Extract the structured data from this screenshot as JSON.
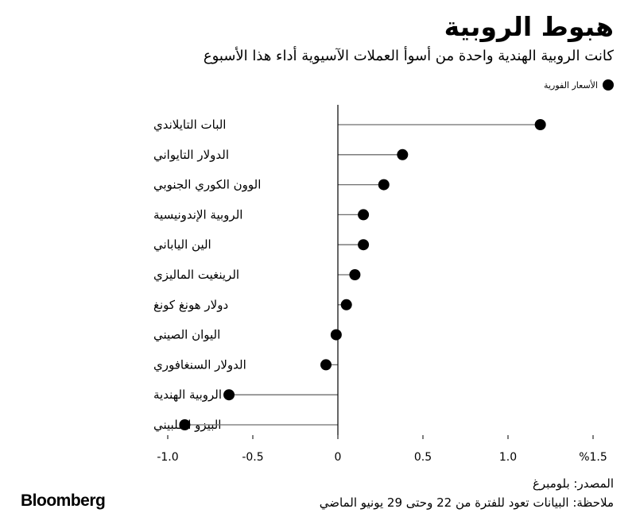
{
  "header": {
    "title": "هبوط الروبية",
    "subtitle": "كانت الروبية الهندية واحدة من أسوأ العملات الآسيوية أداء هذا الأسبوع"
  },
  "footer": {
    "brand": "Bloomberg",
    "source": "المصدر: بلومبرغ",
    "note": "ملاحظة: البيانات تعود للفترة من 22 وحتى 29 يونيو الماضي"
  },
  "colors": {
    "dot": "#000000",
    "stem": "#6e6e6e",
    "axis": "#000000"
  },
  "chart_data": {
    "type": "lollipop",
    "legend": {
      "label": "الأسعار الفورية",
      "position": "top-right"
    },
    "categories": [
      "البات التايلاندي",
      "الدولار التايواني",
      "الوون الكوري الجنوبي",
      "الروبية الإندونيسية",
      "الين الياباني",
      "الرينغيت الماليزي",
      "دولار هونغ كونغ",
      "اليوان الصيني",
      "الدولار السنغافوري",
      "الروبية الهندية",
      "البيزو الفلبيني"
    ],
    "values": [
      1.19,
      0.38,
      0.27,
      0.15,
      0.15,
      0.1,
      0.05,
      -0.01,
      -0.07,
      -0.64,
      -0.9
    ],
    "xlim": [
      -1.0,
      1.5
    ],
    "xticks": [
      -1.0,
      -0.5,
      0,
      0.5,
      1.0,
      1.5
    ],
    "xtick_labels": [
      "-1.0",
      "-0.5",
      "0",
      "0.5",
      "1.0",
      "%1.5"
    ],
    "grid": false
  }
}
